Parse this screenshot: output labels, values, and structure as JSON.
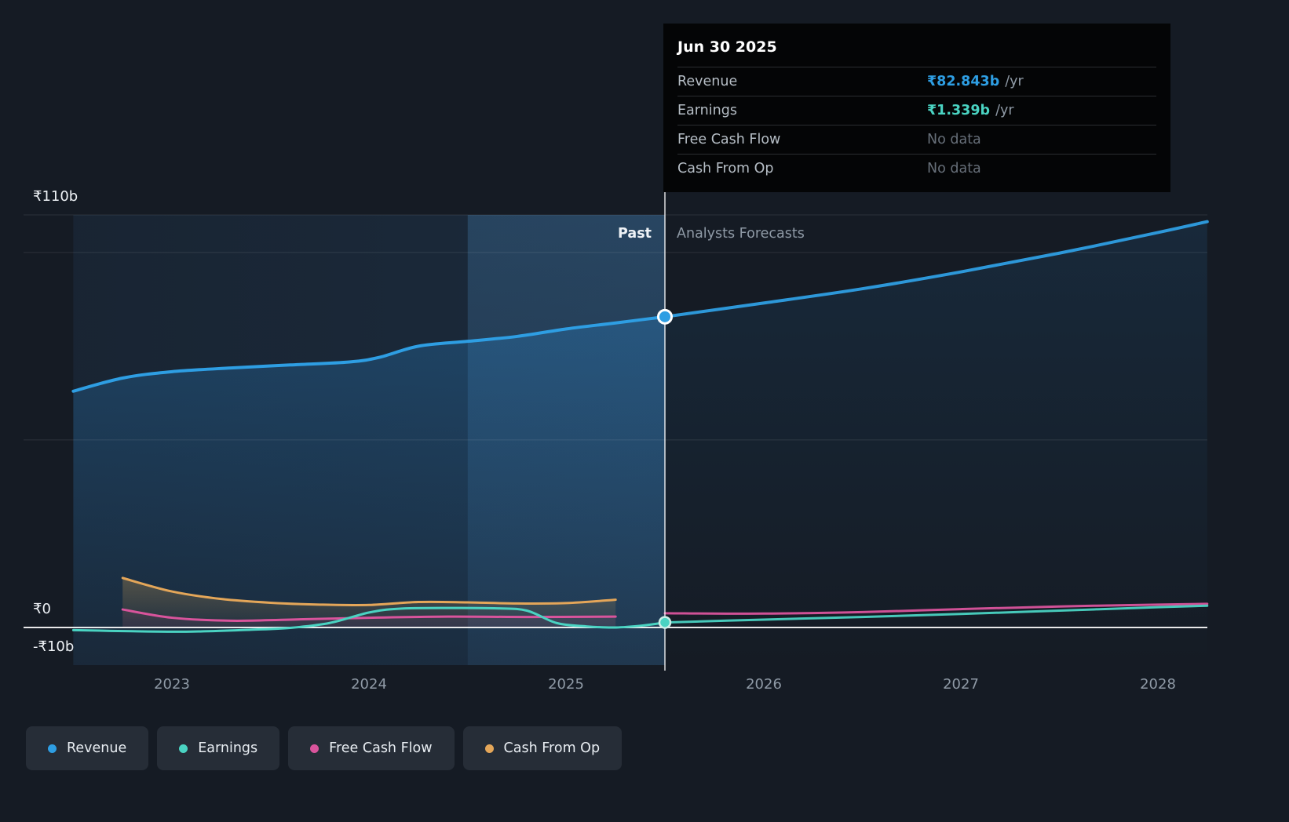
{
  "tooltip": {
    "date": "Jun 30 2025",
    "rows": [
      {
        "label": "Revenue",
        "value": "₹82.843b",
        "suffix": "/yr",
        "value_color": "#2e9ee3",
        "no_data": false
      },
      {
        "label": "Earnings",
        "value": "₹1.339b",
        "suffix": "/yr",
        "value_color": "#4ad3c2",
        "no_data": false
      },
      {
        "label": "Free Cash Flow",
        "value": "No data",
        "suffix": "",
        "value_color": "#676f79",
        "no_data": true
      },
      {
        "label": "Cash From Op",
        "value": "No data",
        "suffix": "",
        "value_color": "#676f79",
        "no_data": true
      }
    ]
  },
  "sections": {
    "past_label": "Past",
    "forecast_label": "Analysts Forecasts"
  },
  "legend": [
    {
      "label": "Revenue",
      "color": "#2e9ee3"
    },
    {
      "label": "Earnings",
      "color": "#4ad3c2"
    },
    {
      "label": "Free Cash Flow",
      "color": "#d9549c"
    },
    {
      "label": "Cash From Op",
      "color": "#e4a659"
    }
  ],
  "chart_data": {
    "type": "line",
    "unit": "₹ billions per year",
    "x_axis": {
      "ticks": [
        "2023",
        "2024",
        "2025",
        "2026",
        "2027",
        "2028"
      ],
      "start": 2022.5,
      "end": 2028.25,
      "divider": 2025.5,
      "highlight_band": [
        2024.5,
        2025.5
      ]
    },
    "y_axis": {
      "gridline_values": [
        110,
        100,
        50,
        0
      ],
      "labeled": [
        {
          "text": "₹110b",
          "value": 110
        },
        {
          "text": "₹0",
          "value": 0
        },
        {
          "text": "-₹10b",
          "value": -10
        }
      ],
      "ylim": [
        -12,
        122
      ]
    },
    "series": [
      {
        "name": "Revenue",
        "color": "#2e9ee3",
        "width": 4,
        "past": [
          [
            2022.5,
            63
          ],
          [
            2022.75,
            66.5
          ],
          [
            2023,
            68.2
          ],
          [
            2023.3,
            69.2
          ],
          [
            2023.6,
            70
          ],
          [
            2023.9,
            70.8
          ],
          [
            2024.05,
            72
          ],
          [
            2024.25,
            75
          ],
          [
            2024.5,
            76.3
          ],
          [
            2024.75,
            77.6
          ],
          [
            2025,
            79.6
          ],
          [
            2025.25,
            81.2
          ],
          [
            2025.5,
            82.843
          ]
        ],
        "forecast": [
          [
            2025.5,
            82.843
          ],
          [
            2026,
            86.5
          ],
          [
            2026.5,
            90.3
          ],
          [
            2027,
            94.8
          ],
          [
            2027.5,
            99.8
          ],
          [
            2028,
            105.3
          ],
          [
            2028.25,
            108.2
          ]
        ],
        "marker": {
          "x": 2025.5,
          "value": 82.843
        }
      },
      {
        "name": "Earnings",
        "color": "#4ad3c2",
        "width": 3,
        "past": [
          [
            2022.5,
            -0.7
          ],
          [
            2022.8,
            -1.0
          ],
          [
            2023.1,
            -1.1
          ],
          [
            2023.4,
            -0.6
          ],
          [
            2023.6,
            -0.1
          ],
          [
            2023.8,
            1.2
          ],
          [
            2024.0,
            4.0
          ],
          [
            2024.15,
            5.0
          ],
          [
            2024.4,
            5.2
          ],
          [
            2024.65,
            5.1
          ],
          [
            2024.8,
            4.5
          ],
          [
            2024.95,
            1.2
          ],
          [
            2025.1,
            0.3
          ],
          [
            2025.25,
            0.0
          ],
          [
            2025.4,
            0.6
          ],
          [
            2025.5,
            1.339
          ]
        ],
        "forecast": [
          [
            2025.5,
            1.339
          ],
          [
            2026,
            2.1
          ],
          [
            2026.5,
            2.8
          ],
          [
            2027,
            3.6
          ],
          [
            2027.5,
            4.5
          ],
          [
            2028,
            5.4
          ],
          [
            2028.25,
            5.8
          ]
        ],
        "marker": {
          "x": 2025.5,
          "value": 1.339
        }
      },
      {
        "name": "Free Cash Flow",
        "color": "#d9549c",
        "width": 3,
        "past": [
          [
            2022.75,
            4.8
          ],
          [
            2023,
            2.6
          ],
          [
            2023.3,
            1.8
          ],
          [
            2023.6,
            2.1
          ],
          [
            2024,
            2.6
          ],
          [
            2024.4,
            2.9
          ],
          [
            2024.8,
            2.8
          ],
          [
            2025.25,
            2.9
          ]
        ],
        "forecast": [
          [
            2025.5,
            3.8
          ],
          [
            2026,
            3.7
          ],
          [
            2026.5,
            4.1
          ],
          [
            2027,
            4.9
          ],
          [
            2027.5,
            5.6
          ],
          [
            2028,
            6.1
          ],
          [
            2028.25,
            6.3
          ]
        ],
        "marker": null
      },
      {
        "name": "Cash From Op",
        "color": "#e4a659",
        "width": 3,
        "past": [
          [
            2022.75,
            13.2
          ],
          [
            2023,
            9.6
          ],
          [
            2023.25,
            7.6
          ],
          [
            2023.5,
            6.6
          ],
          [
            2023.75,
            6.1
          ],
          [
            2024,
            6.0
          ],
          [
            2024.25,
            6.8
          ],
          [
            2024.5,
            6.7
          ],
          [
            2024.75,
            6.4
          ],
          [
            2025,
            6.5
          ],
          [
            2025.25,
            7.4
          ]
        ],
        "forecast": [],
        "marker": null
      }
    ]
  }
}
